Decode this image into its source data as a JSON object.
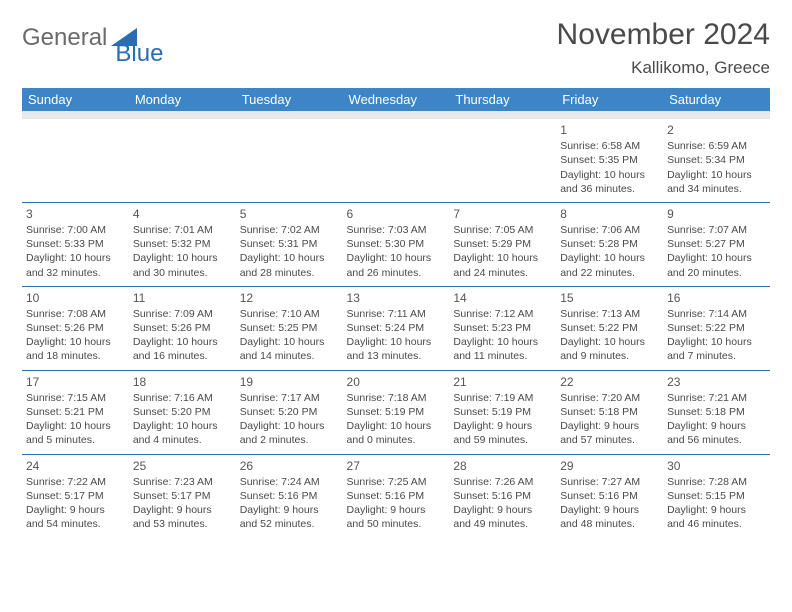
{
  "brand": {
    "part1": "General",
    "part2": "Blue",
    "triangle_color": "#2a6db0"
  },
  "title": "November 2024",
  "location": "Kallikomo, Greece",
  "header_bg": "#3d85c6",
  "border_color": "#2a6db0",
  "day_headers": [
    "Sunday",
    "Monday",
    "Tuesday",
    "Wednesday",
    "Thursday",
    "Friday",
    "Saturday"
  ],
  "weeks": [
    [
      null,
      null,
      null,
      null,
      null,
      {
        "n": "1",
        "sr": "6:58 AM",
        "ss": "5:35 PM",
        "dl": "10 hours and 36 minutes."
      },
      {
        "n": "2",
        "sr": "6:59 AM",
        "ss": "5:34 PM",
        "dl": "10 hours and 34 minutes."
      }
    ],
    [
      {
        "n": "3",
        "sr": "7:00 AM",
        "ss": "5:33 PM",
        "dl": "10 hours and 32 minutes."
      },
      {
        "n": "4",
        "sr": "7:01 AM",
        "ss": "5:32 PM",
        "dl": "10 hours and 30 minutes."
      },
      {
        "n": "5",
        "sr": "7:02 AM",
        "ss": "5:31 PM",
        "dl": "10 hours and 28 minutes."
      },
      {
        "n": "6",
        "sr": "7:03 AM",
        "ss": "5:30 PM",
        "dl": "10 hours and 26 minutes."
      },
      {
        "n": "7",
        "sr": "7:05 AM",
        "ss": "5:29 PM",
        "dl": "10 hours and 24 minutes."
      },
      {
        "n": "8",
        "sr": "7:06 AM",
        "ss": "5:28 PM",
        "dl": "10 hours and 22 minutes."
      },
      {
        "n": "9",
        "sr": "7:07 AM",
        "ss": "5:27 PM",
        "dl": "10 hours and 20 minutes."
      }
    ],
    [
      {
        "n": "10",
        "sr": "7:08 AM",
        "ss": "5:26 PM",
        "dl": "10 hours and 18 minutes."
      },
      {
        "n": "11",
        "sr": "7:09 AM",
        "ss": "5:26 PM",
        "dl": "10 hours and 16 minutes."
      },
      {
        "n": "12",
        "sr": "7:10 AM",
        "ss": "5:25 PM",
        "dl": "10 hours and 14 minutes."
      },
      {
        "n": "13",
        "sr": "7:11 AM",
        "ss": "5:24 PM",
        "dl": "10 hours and 13 minutes."
      },
      {
        "n": "14",
        "sr": "7:12 AM",
        "ss": "5:23 PM",
        "dl": "10 hours and 11 minutes."
      },
      {
        "n": "15",
        "sr": "7:13 AM",
        "ss": "5:22 PM",
        "dl": "10 hours and 9 minutes."
      },
      {
        "n": "16",
        "sr": "7:14 AM",
        "ss": "5:22 PM",
        "dl": "10 hours and 7 minutes."
      }
    ],
    [
      {
        "n": "17",
        "sr": "7:15 AM",
        "ss": "5:21 PM",
        "dl": "10 hours and 5 minutes."
      },
      {
        "n": "18",
        "sr": "7:16 AM",
        "ss": "5:20 PM",
        "dl": "10 hours and 4 minutes."
      },
      {
        "n": "19",
        "sr": "7:17 AM",
        "ss": "5:20 PM",
        "dl": "10 hours and 2 minutes."
      },
      {
        "n": "20",
        "sr": "7:18 AM",
        "ss": "5:19 PM",
        "dl": "10 hours and 0 minutes."
      },
      {
        "n": "21",
        "sr": "7:19 AM",
        "ss": "5:19 PM",
        "dl": "9 hours and 59 minutes."
      },
      {
        "n": "22",
        "sr": "7:20 AM",
        "ss": "5:18 PM",
        "dl": "9 hours and 57 minutes."
      },
      {
        "n": "23",
        "sr": "7:21 AM",
        "ss": "5:18 PM",
        "dl": "9 hours and 56 minutes."
      }
    ],
    [
      {
        "n": "24",
        "sr": "7:22 AM",
        "ss": "5:17 PM",
        "dl": "9 hours and 54 minutes."
      },
      {
        "n": "25",
        "sr": "7:23 AM",
        "ss": "5:17 PM",
        "dl": "9 hours and 53 minutes."
      },
      {
        "n": "26",
        "sr": "7:24 AM",
        "ss": "5:16 PM",
        "dl": "9 hours and 52 minutes."
      },
      {
        "n": "27",
        "sr": "7:25 AM",
        "ss": "5:16 PM",
        "dl": "9 hours and 50 minutes."
      },
      {
        "n": "28",
        "sr": "7:26 AM",
        "ss": "5:16 PM",
        "dl": "9 hours and 49 minutes."
      },
      {
        "n": "29",
        "sr": "7:27 AM",
        "ss": "5:16 PM",
        "dl": "9 hours and 48 minutes."
      },
      {
        "n": "30",
        "sr": "7:28 AM",
        "ss": "5:15 PM",
        "dl": "9 hours and 46 minutes."
      }
    ]
  ],
  "labels": {
    "sunrise": "Sunrise: ",
    "sunset": "Sunset: ",
    "daylight": "Daylight: "
  }
}
